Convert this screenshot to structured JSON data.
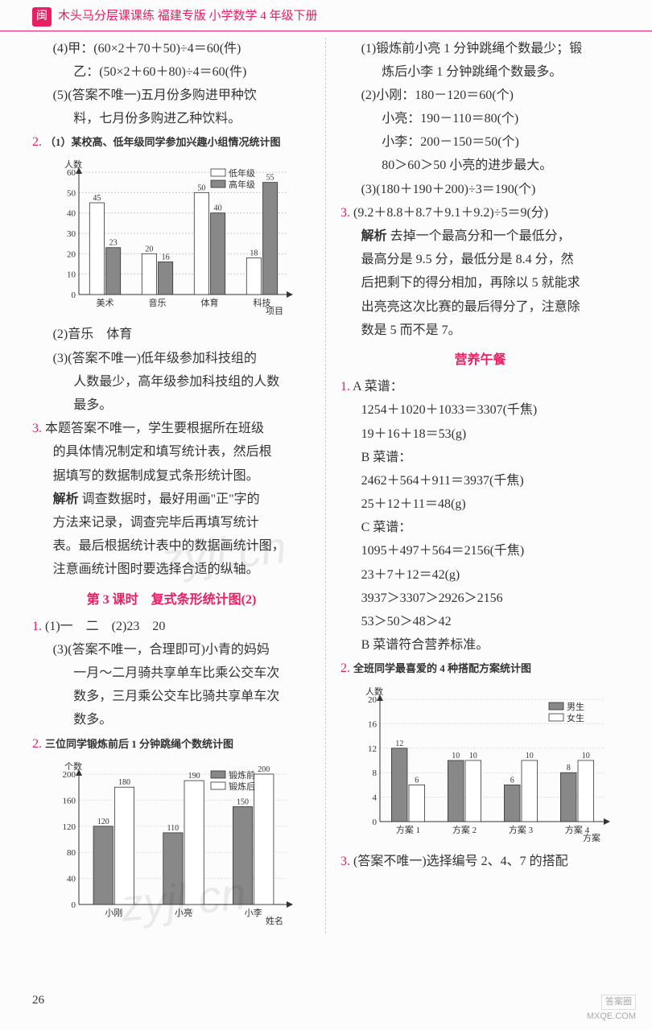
{
  "header": {
    "icon": "闽",
    "title": "木头马分层课课练  福建专版  小学数学  4 年级下册"
  },
  "pageNumber": "26",
  "watermark": "zyjl.cn",
  "footer": {
    "line1": "答案圈",
    "line2": "MXQE.COM"
  },
  "left": {
    "l1": "(4)甲：(60×2＋70＋50)÷4＝60(件)",
    "l2": "乙：(50×2＋60＋80)÷4＝60(件)",
    "l3": "(5)(答案不唯一)五月份多购进甲种饮",
    "l4": "料，七月份多购进乙种饮料。",
    "q2num": "2.",
    "l5": "（1）某校高、低年级同学参加兴趣小组情况统计图",
    "chart1": {
      "type": "bar",
      "ylabel": "人数",
      "xlabel": "项目",
      "categories": [
        "美术",
        "音乐",
        "体育",
        "科技"
      ],
      "series1_name": "低年级",
      "series1_color": "#ffffff",
      "series1_stroke": "#333",
      "series2_name": "高年级",
      "series2_color": "#888888",
      "values1": [
        45,
        20,
        50,
        18
      ],
      "values2": [
        23,
        16,
        40,
        55
      ],
      "ymax": 60,
      "ytick_step": 10,
      "grid_color": "#ccc",
      "axis_color": "#333"
    },
    "l6": "(2)音乐　体育",
    "l7": "(3)(答案不唯一)低年级参加科技组的",
    "l8": "人数最少，高年级参加科技组的人数",
    "l9": "最多。",
    "q3num": "3.",
    "l10": "本题答案不唯一，学生要根据所在班级",
    "l11": "的具体情况制定和填写统计表，然后根",
    "l12": "据填写的数据制成复式条形统计图。",
    "l13b": "解析",
    "l13": "调查数据时，最好用画\"正\"字的",
    "l14": "方法来记录，调查完毕后再填写统计",
    "l15": "表。最后根据统计表中的数据画统计图，",
    "l16": "注意画统计图时要选择合适的纵轴。",
    "section_title": "第 3 课时　复式条形统计图(2)",
    "l17num": "1.",
    "l17": "(1)一　二　(2)23　20",
    "l18": "(3)(答案不唯一，合理即可)小青的妈妈",
    "l19": "一月～二月骑共享单车比乘公交车次",
    "l20": "数多，三月乘公交车比骑共享单车次",
    "l21": "数多。",
    "q2bnum": "2.",
    "l22": "三位同学锻炼前后 1 分钟跳绳个数统计图",
    "chart2": {
      "type": "bar",
      "ylabel": "个数",
      "xlabel": "姓名",
      "categories": [
        "小刚",
        "小亮",
        "小李"
      ],
      "series1_name": "锻炼前",
      "series1_color": "#888888",
      "series2_name": "锻炼后",
      "series2_color": "#ffffff",
      "series2_stroke": "#333",
      "values1": [
        120,
        110,
        150
      ],
      "values2": [
        180,
        190,
        200
      ],
      "ymax": 200,
      "ytick_step": 40,
      "grid_color": "#ddd",
      "axis_color": "#333"
    }
  },
  "right": {
    "r1": "(1)锻炼前小亮 1 分钟跳绳个数最少；锻",
    "r2": "炼后小李 1 分钟跳绳个数最多。",
    "r3": "(2)小刚：180－120＝60(个)",
    "r4": "小亮：190－110＝80(个)",
    "r5": "小李：200－150＝50(个)",
    "r6": "80＞60＞50  小亮的进步最大。",
    "r7": "(3)(180＋190＋200)÷3＝190(个)",
    "q3rnum": "3.",
    "r8": "(9.2＋8.8＋8.7＋9.1＋9.2)÷5＝9(分)",
    "r9b": "解析",
    "r9": "  去掉一个最高分和一个最低分，",
    "r10": "最高分是 9.5 分，最低分是 8.4 分，然",
    "r11": "后把剩下的得分相加，再除以 5 就能求",
    "r12": "出亮亮这次比赛的最后得分了，注意除",
    "r13": "数是 5 而不是 7。",
    "section_title2": "营养午餐",
    "q1rnum": "1.",
    "r14": "A 菜谱：",
    "r15": "1254＋1020＋1033＝3307(千焦)",
    "r16": "19＋16＋18＝53(g)",
    "r17": "B 菜谱：",
    "r18": "2462＋564＋911＝3937(千焦)",
    "r19": "25＋12＋11＝48(g)",
    "r20": "C 菜谱：",
    "r21": "1095＋497＋564＝2156(千焦)",
    "r22": "23＋7＋12＝42(g)",
    "r23": "3937＞3307＞2926＞2156",
    "r24": "53＞50＞48＞42",
    "r25": "B 菜谱符合营养标准。",
    "q2rnum": "2.",
    "r26": "全班同学最喜爱的 4 种搭配方案统计图",
    "chart3": {
      "type": "bar",
      "ylabel": "人数",
      "xlabel": "方案",
      "categories": [
        "方案 1",
        "方案 2",
        "方案 3",
        "方案 4"
      ],
      "series1_name": "男生",
      "series1_color": "#888888",
      "series2_name": "女生",
      "series2_color": "#ffffff",
      "series2_stroke": "#333",
      "values1": [
        12,
        10,
        6,
        8
      ],
      "values2": [
        6,
        10,
        10,
        10
      ],
      "ymax": 20,
      "ytick_step": 4,
      "grid_color": "#ddd",
      "axis_color": "#333"
    },
    "q3r2num": "3.",
    "r27": "(答案不唯一)选择编号 2、4、7 的搭配"
  }
}
